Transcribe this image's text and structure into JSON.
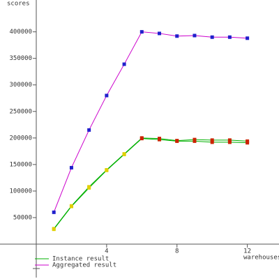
{
  "chart_data": {
    "type": "line",
    "y_label": "scores",
    "x_label": "warehouses",
    "x": [
      1,
      2,
      3,
      4,
      5,
      6,
      7,
      8,
      9,
      10,
      11,
      12
    ],
    "series": [
      {
        "name": "Instance result",
        "color": "#00b000",
        "marker_colors": [
          "#e0d000",
          "#e0d000",
          "#e0d000",
          "#e0d000",
          "#e0d000",
          "#cc2200",
          "#cc2200",
          "#cc2200",
          "#cc2200",
          "#cc2200",
          "#cc2200",
          "#cc2200"
        ],
        "values": [
          29000,
          72000,
          108000,
          140000,
          170000,
          200000,
          199000,
          195000,
          197000,
          196000,
          196000,
          194000
        ]
      },
      {
        "color": "#00b000",
        "marker_colors": [
          "#e0d000",
          "#e0d000",
          "#e0d000",
          "#e0d000",
          "#e0d000",
          "#cc2200",
          "#cc2200",
          "#cc2200",
          "#cc2200",
          "#cc2200",
          "#cc2200",
          "#cc2200"
        ],
        "values": [
          28000,
          71000,
          106000,
          139000,
          169000,
          199000,
          197000,
          194000,
          194000,
          192000,
          192000,
          191000
        ]
      },
      {
        "name": "Aggregated result",
        "color": "#cc00cc",
        "marker_colors": [
          "#2020cc",
          "#2020cc",
          "#2020cc",
          "#2020cc",
          "#2020cc",
          "#2020cc",
          "#2020cc",
          "#2020cc",
          "#2020cc",
          "#2020cc",
          "#2020cc",
          "#2020cc"
        ],
        "values": [
          60000,
          144000,
          215000,
          280000,
          339000,
          400000,
          397000,
          392000,
          393000,
          390000,
          390000,
          388000
        ]
      }
    ],
    "xlim": [
      0,
      13.8
    ],
    "xticks": [
      4,
      8,
      12
    ],
    "ylim": [
      0,
      460000
    ],
    "yticks": [
      50000,
      100000,
      150000,
      200000,
      250000,
      300000,
      350000,
      400000
    ]
  }
}
